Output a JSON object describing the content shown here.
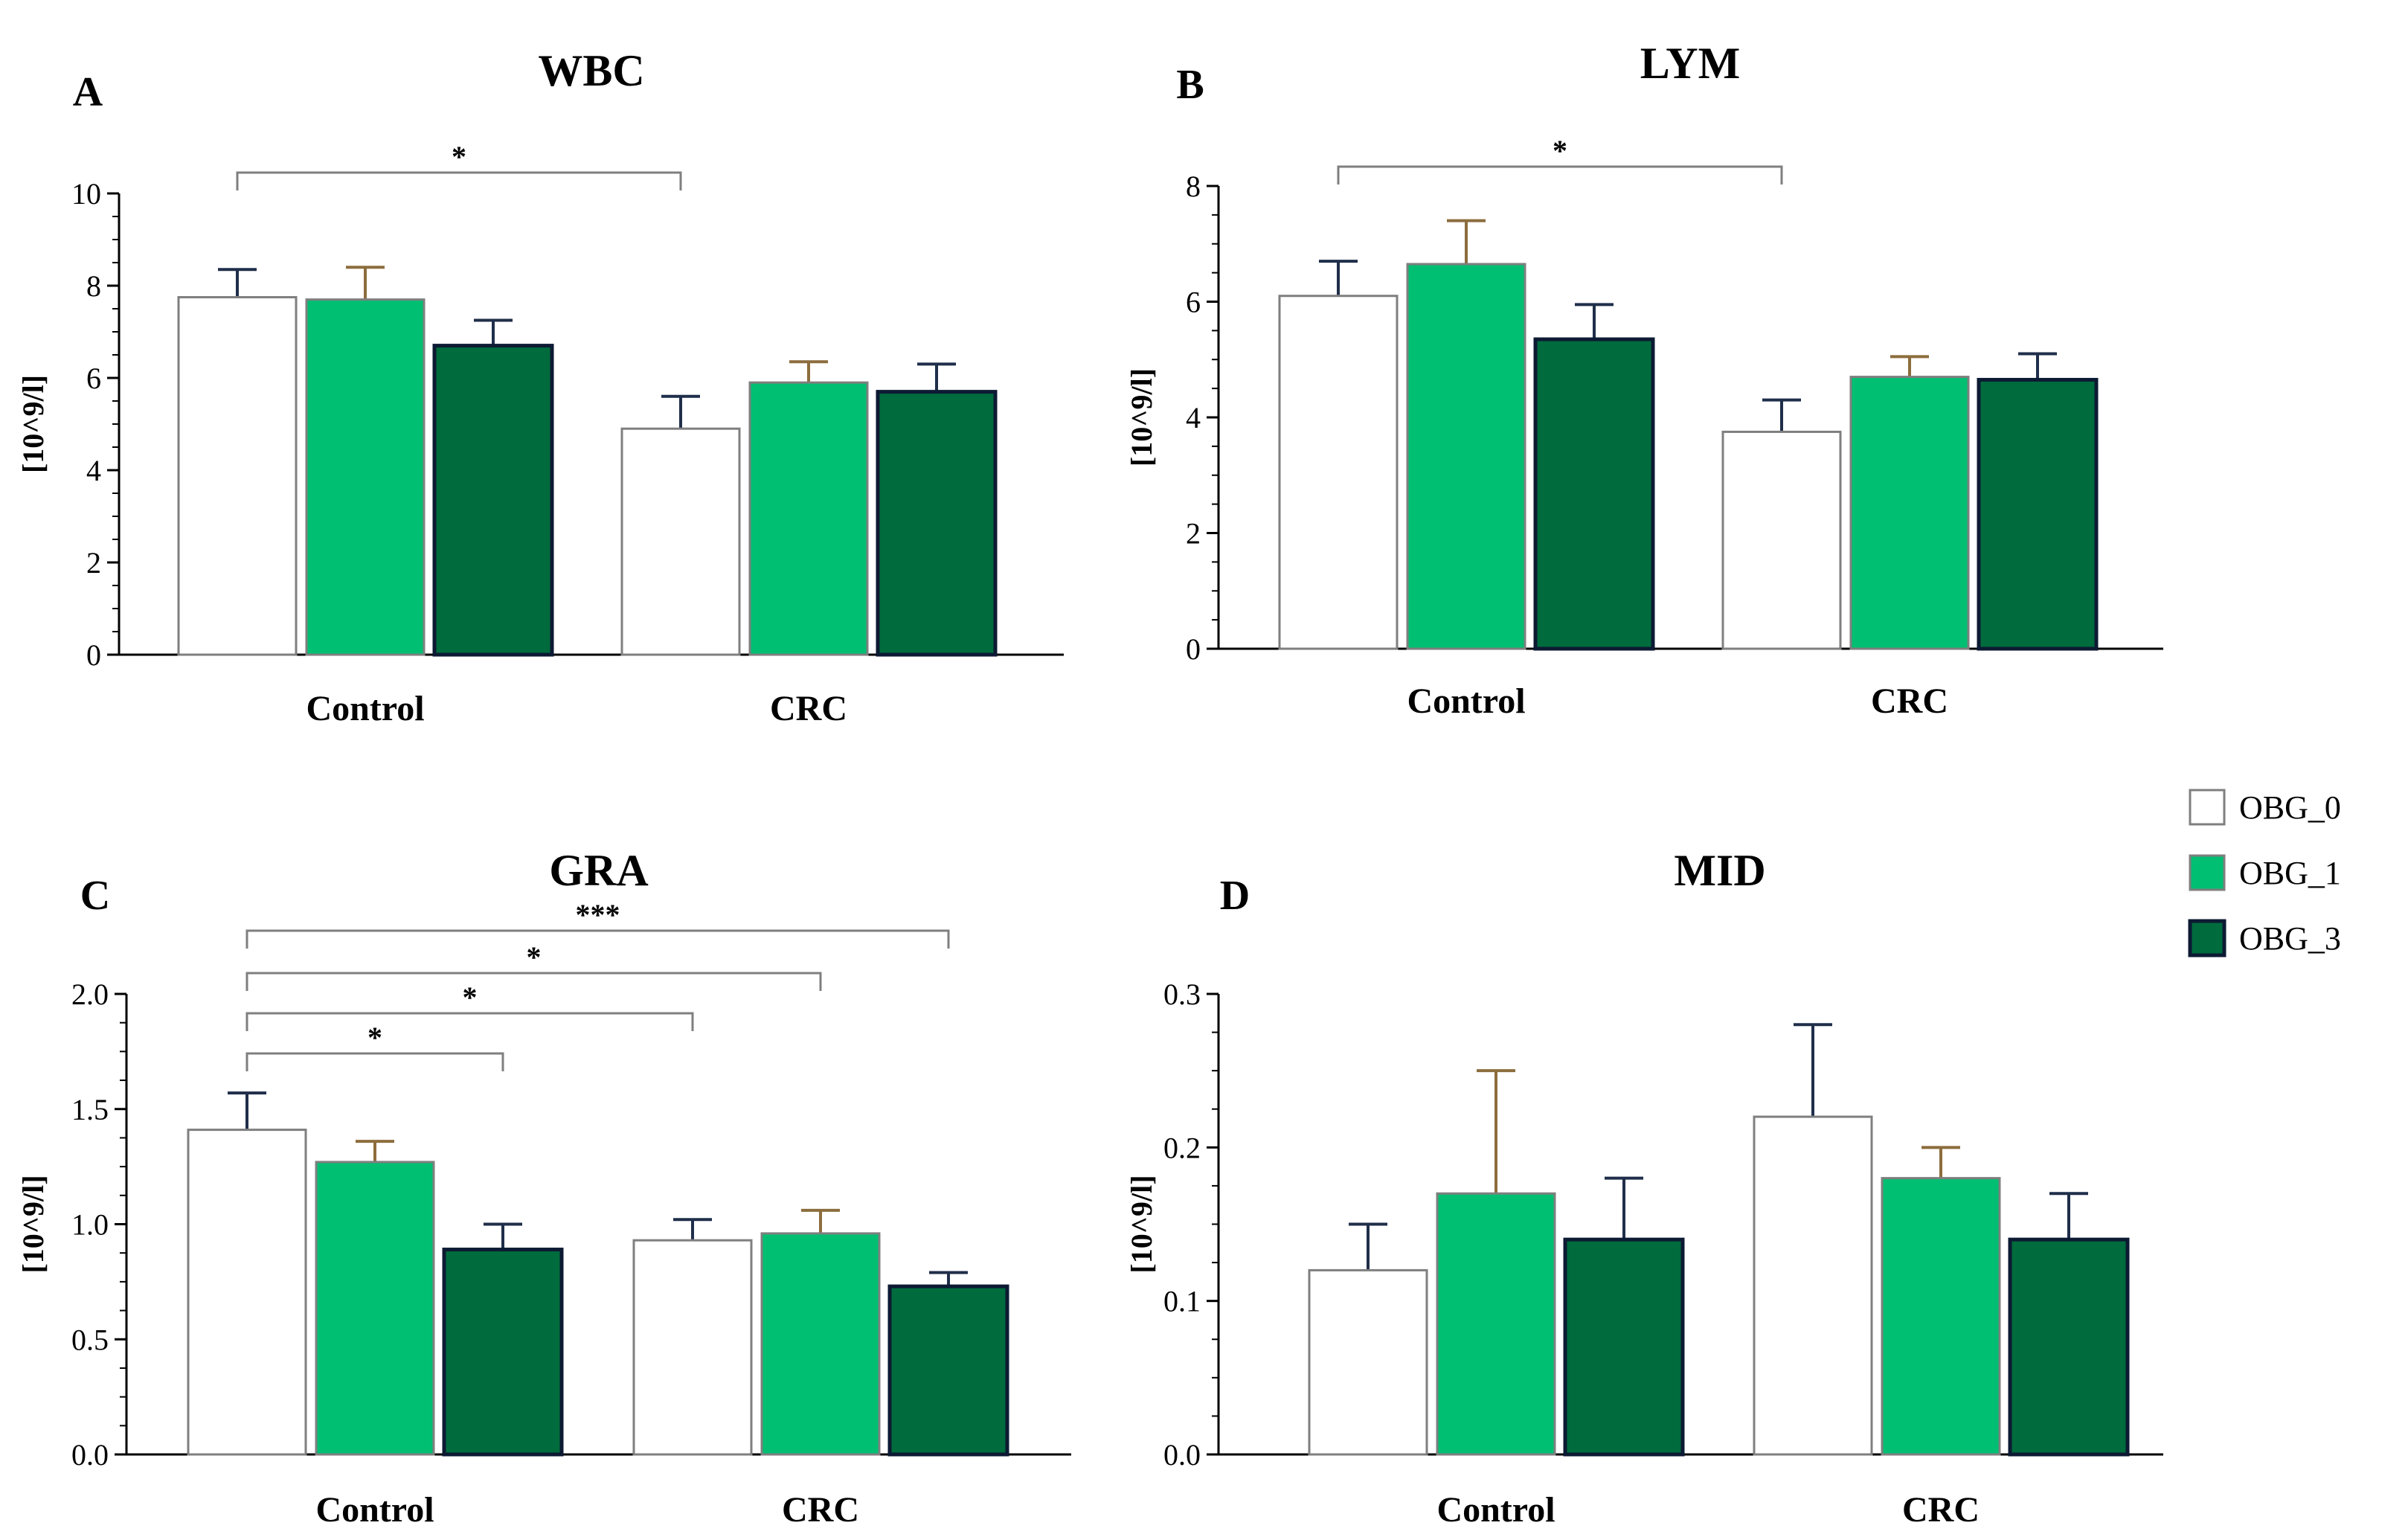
{
  "chart_data": [
    {
      "type": "bar",
      "panel": "A",
      "title": "WBC",
      "ylabel": "[10^9/l]",
      "ylim": [
        0,
        10
      ],
      "yticks": [
        "0",
        "2",
        "4",
        "6",
        "8",
        "10"
      ],
      "categories": [
        "Control",
        "CRC"
      ],
      "series": [
        {
          "name": "OBG_0",
          "values": [
            7.75,
            4.9
          ],
          "errors": [
            0.6,
            0.7
          ]
        },
        {
          "name": "OBG_1",
          "values": [
            7.7,
            5.9
          ],
          "errors": [
            0.7,
            0.45
          ]
        },
        {
          "name": "OBG_3",
          "values": [
            6.7,
            5.7
          ],
          "errors": [
            0.55,
            0.6
          ]
        }
      ],
      "significance": [
        {
          "from": [
            "Control",
            "OBG_0"
          ],
          "to": [
            "CRC",
            "OBG_0"
          ],
          "label": "*"
        }
      ]
    },
    {
      "type": "bar",
      "panel": "B",
      "title": "LYM",
      "ylabel": "[10^9/l]",
      "ylim": [
        0,
        8
      ],
      "yticks": [
        "0",
        "2",
        "4",
        "6",
        "8"
      ],
      "categories": [
        "Control",
        "CRC"
      ],
      "series": [
        {
          "name": "OBG_0",
          "values": [
            6.1,
            3.75
          ],
          "errors": [
            0.6,
            0.55
          ]
        },
        {
          "name": "OBG_1",
          "values": [
            6.65,
            4.7
          ],
          "errors": [
            0.75,
            0.35
          ]
        },
        {
          "name": "OBG_3",
          "values": [
            5.35,
            4.65
          ],
          "errors": [
            0.6,
            0.45
          ]
        }
      ],
      "significance": [
        {
          "from": [
            "Control",
            "OBG_0"
          ],
          "to": [
            "CRC",
            "OBG_0"
          ],
          "label": "*"
        }
      ]
    },
    {
      "type": "bar",
      "panel": "C",
      "title": "GRA",
      "ylabel": "[10^9/l]",
      "ylim": [
        0,
        2.0
      ],
      "yticks": [
        "0.0",
        "0.5",
        "1.0",
        "1.5",
        "2.0"
      ],
      "categories": [
        "Control",
        "CRC"
      ],
      "series": [
        {
          "name": "OBG_0",
          "values": [
            1.41,
            0.93
          ],
          "errors": [
            0.16,
            0.09
          ]
        },
        {
          "name": "OBG_1",
          "values": [
            1.27,
            0.96
          ],
          "errors": [
            0.09,
            0.1
          ]
        },
        {
          "name": "OBG_3",
          "values": [
            0.89,
            0.73
          ],
          "errors": [
            0.11,
            0.06
          ]
        }
      ],
      "significance": [
        {
          "from": [
            "Control",
            "OBG_0"
          ],
          "to": [
            "Control",
            "OBG_3"
          ],
          "label": "*"
        },
        {
          "from": [
            "Control",
            "OBG_0"
          ],
          "to": [
            "CRC",
            "OBG_0"
          ],
          "label": "*"
        },
        {
          "from": [
            "Control",
            "OBG_0"
          ],
          "to": [
            "CRC",
            "OBG_1"
          ],
          "label": "*"
        },
        {
          "from": [
            "Control",
            "OBG_0"
          ],
          "to": [
            "CRC",
            "OBG_3"
          ],
          "label": "***"
        }
      ]
    },
    {
      "type": "bar",
      "panel": "D",
      "title": "MID",
      "ylabel": "[10^9/l]",
      "ylim": [
        0,
        0.3
      ],
      "yticks": [
        "0.0",
        "0.1",
        "0.2",
        "0.3"
      ],
      "categories": [
        "Control",
        "CRC"
      ],
      "series": [
        {
          "name": "OBG_0",
          "values": [
            0.12,
            0.22
          ],
          "errors": [
            0.03,
            0.06
          ]
        },
        {
          "name": "OBG_1",
          "values": [
            0.17,
            0.18
          ],
          "errors": [
            0.08,
            0.02
          ]
        },
        {
          "name": "OBG_3",
          "values": [
            0.14,
            0.14
          ],
          "errors": [
            0.04,
            0.03
          ]
        }
      ],
      "significance": []
    }
  ],
  "legend": {
    "position": "right",
    "items": [
      {
        "label": "OBG_0",
        "color": "#ffffff",
        "border": "#7f7f7f"
      },
      {
        "label": "OBG_1",
        "color": "#00bf72",
        "border": "#7f7f7f"
      },
      {
        "label": "OBG_3",
        "color": "#006b3d",
        "border": "#0d1a33"
      }
    ]
  },
  "colors": {
    "axis": "#000000",
    "bracket": "#7f7f7f",
    "error_dark": "#1f2e4a",
    "error_brown": "#8c6d3d"
  }
}
